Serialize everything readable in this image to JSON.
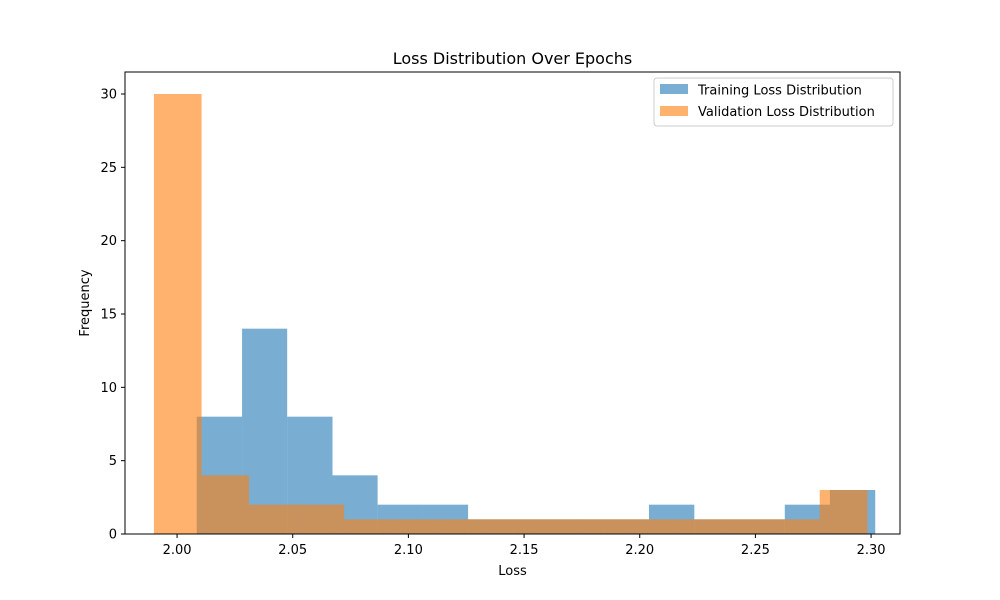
{
  "chart_data": {
    "type": "bar",
    "title": "Loss Distribution Over Epochs",
    "xlabel": "Loss",
    "ylabel": "Frequency",
    "xlim": [
      1.9775,
      2.3125
    ],
    "ylim": [
      0,
      31.5
    ],
    "xticks": [
      2.0,
      2.05,
      2.1,
      2.15,
      2.2,
      2.25,
      2.3
    ],
    "xtick_labels": [
      "2.00",
      "2.05",
      "2.10",
      "2.15",
      "2.20",
      "2.25",
      "2.30"
    ],
    "yticks": [
      0,
      5,
      10,
      15,
      20,
      25,
      30
    ],
    "ytick_labels": [
      "0",
      "5",
      "10",
      "15",
      "20",
      "25",
      "30"
    ],
    "legend_position": "top-right",
    "series": [
      {
        "name": "Training Loss Distribution",
        "color": "#1f77b4",
        "opacity": 0.6,
        "bins": [
          2.0085,
          2.0281,
          2.0476,
          2.0672,
          2.0867,
          2.1063,
          2.1258,
          2.1454,
          2.1649,
          2.1845,
          2.204,
          2.2236,
          2.2431,
          2.2627,
          2.2822,
          2.3018
        ],
        "counts": [
          8,
          14,
          8,
          4,
          2,
          2,
          1,
          1,
          1,
          1,
          2,
          1,
          1,
          2,
          3
        ]
      },
      {
        "name": "Validation Loss Distribution",
        "color": "#ff7f0e",
        "opacity": 0.6,
        "bins": [
          1.99,
          2.0106,
          2.0311,
          2.0517,
          2.0722,
          2.0928,
          2.1134,
          2.1339,
          2.1545,
          2.175,
          2.1956,
          2.2162,
          2.2367,
          2.2573,
          2.2778,
          2.2984
        ],
        "counts": [
          30,
          4,
          2,
          2,
          1,
          1,
          1,
          1,
          1,
          1,
          1,
          1,
          1,
          1,
          3
        ]
      }
    ]
  }
}
